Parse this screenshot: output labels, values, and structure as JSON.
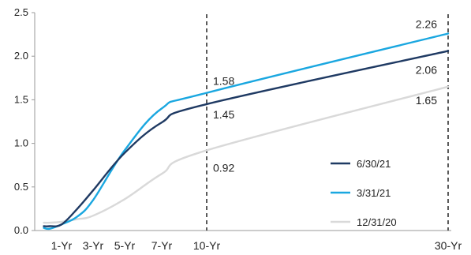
{
  "chart_data": {
    "type": "line",
    "title": "",
    "xlabel": "",
    "ylabel": "",
    "ylim": [
      0,
      2.5
    ],
    "yticks": [
      "0.0",
      "0.5",
      "1.0",
      "1.5",
      "2.0",
      "2.5"
    ],
    "xticks": [
      "1-Yr",
      "3-Yr",
      "5-Yr",
      "7-Yr",
      "10-Yr",
      "30-Yr"
    ],
    "x": [
      0.25,
      0.5,
      1,
      2,
      3,
      5,
      7,
      10,
      30
    ],
    "grid": false,
    "legend_position": "bottom-right",
    "series": [
      {
        "name": "6/30/21",
        "color": "#1f3a63",
        "values": [
          0.05,
          0.05,
          0.07,
          0.25,
          0.46,
          0.89,
          1.24,
          1.45,
          2.06
        ]
      },
      {
        "name": "3/31/21",
        "color": "#1aa7e0",
        "values": [
          0.03,
          0.02,
          0.07,
          0.16,
          0.35,
          0.92,
          1.4,
          1.58,
          2.26
        ]
      },
      {
        "name": "12/31/20",
        "color": "#d9d9d9",
        "values": [
          0.09,
          0.09,
          0.1,
          0.13,
          0.17,
          0.36,
          0.65,
          0.92,
          1.65
        ]
      }
    ],
    "annotations": [
      {
        "text": "1.58",
        "at": "10-Yr",
        "series": "3/31/21"
      },
      {
        "text": "1.45",
        "at": "10-Yr",
        "series": "6/30/21"
      },
      {
        "text": "0.92",
        "at": "10-Yr",
        "series": "12/31/20"
      },
      {
        "text": "2.26",
        "at": "30-Yr",
        "series": "3/31/21"
      },
      {
        "text": "2.06",
        "at": "30-Yr",
        "series": "6/30/21"
      },
      {
        "text": "1.65",
        "at": "30-Yr",
        "series": "12/31/20"
      }
    ],
    "reference_lines": [
      "10-Yr",
      "30-Yr"
    ]
  }
}
